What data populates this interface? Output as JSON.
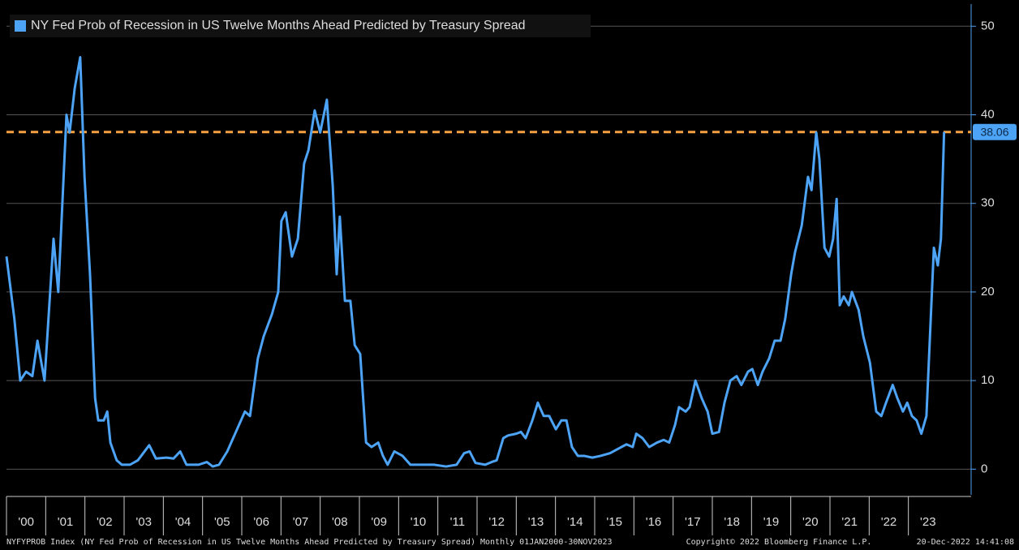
{
  "chart_data": {
    "type": "line",
    "series": [
      {
        "name": "NY Fed Prob of Recession in US Twelve Months Ahead Predicted by Treasury Spread",
        "color": "#4da3f5",
        "values": [
          24,
          17,
          10,
          11,
          10.5,
          14.5,
          10,
          26,
          20,
          40,
          38,
          43,
          46.5,
          33,
          22,
          8,
          5.5,
          5.5,
          6.5,
          3,
          1,
          0.5,
          0.5,
          1,
          2.7,
          1.2,
          1.3,
          1.2,
          2,
          0.5,
          0.5,
          0.8,
          0.3,
          0.5,
          2,
          4.5,
          6.5,
          6,
          12.5,
          15,
          17.5,
          20,
          28,
          29,
          24,
          26,
          34.5,
          36,
          40.5,
          38,
          41.7,
          32,
          22,
          28.5,
          19,
          19,
          14,
          13,
          3,
          2.5,
          3,
          1.5,
          0.5,
          2,
          1.5,
          0.5,
          0.5,
          0.5,
          0.3,
          0.5,
          1.8,
          2,
          0.7,
          0.5,
          0.8,
          1,
          3.5,
          3.8,
          4,
          4.2,
          3.5,
          5.5,
          7.5,
          6,
          6,
          4.5,
          5.5,
          5.5,
          2.5,
          1.5,
          1.5,
          1.3,
          1.5,
          1.8,
          2.3,
          2.8,
          2.5,
          4,
          3.5,
          2.5,
          3,
          3.3,
          3,
          5,
          7,
          6.5,
          7,
          10,
          8,
          6.5,
          4,
          4.2,
          7.5,
          10,
          10.5,
          9.5,
          11,
          11.3,
          9.5,
          11,
          12.5,
          14.5,
          14.5,
          17,
          22,
          24.5,
          27.5,
          33,
          31.5,
          38,
          35,
          25,
          24,
          26,
          30.5,
          18.5,
          19.5,
          18.5,
          20,
          18,
          15,
          12,
          6.5,
          6,
          7.5,
          9.5,
          8,
          6.5,
          7.5,
          6,
          5.5,
          4,
          6,
          14,
          25,
          23,
          26,
          38.06
        ]
      }
    ],
    "x": [
      2000.0,
      2000.2,
      2000.35,
      2000.5,
      2000.66,
      2000.79,
      2000.97,
      2001.2,
      2001.32,
      2001.53,
      2001.61,
      2001.74,
      2001.88,
      2001.99,
      2002.13,
      2002.26,
      2002.34,
      2002.48,
      2002.57,
      2002.65,
      2002.81,
      2002.94,
      2003.15,
      2003.35,
      2003.64,
      2003.81,
      2004.08,
      2004.26,
      2004.43,
      2004.59,
      2004.9,
      2005.11,
      2005.26,
      2005.42,
      2005.63,
      2005.88,
      2006.08,
      2006.21,
      2006.41,
      2006.56,
      2006.77,
      2006.93,
      2007.01,
      2007.12,
      2007.28,
      2007.43,
      2007.59,
      2007.7,
      2007.86,
      2008.0,
      2008.17,
      2008.32,
      2008.42,
      2008.5,
      2008.63,
      2008.77,
      2008.88,
      2009.02,
      2009.17,
      2009.31,
      2009.48,
      2009.6,
      2009.72,
      2009.89,
      2010.1,
      2010.3,
      2010.59,
      2010.9,
      2011.21,
      2011.48,
      2011.67,
      2011.81,
      2011.96,
      2012.21,
      2012.37,
      2012.5,
      2012.67,
      2012.79,
      2013.0,
      2013.12,
      2013.24,
      2013.41,
      2013.55,
      2013.7,
      2013.84,
      2014.01,
      2014.15,
      2014.28,
      2014.42,
      2014.57,
      2014.73,
      2014.94,
      2015.15,
      2015.39,
      2015.6,
      2015.81,
      2015.97,
      2016.06,
      2016.22,
      2016.39,
      2016.59,
      2016.76,
      2016.9,
      2017.05,
      2017.15,
      2017.32,
      2017.42,
      2017.57,
      2017.73,
      2017.88,
      2018.0,
      2018.17,
      2018.31,
      2018.46,
      2018.62,
      2018.74,
      2018.91,
      2019.02,
      2019.16,
      2019.28,
      2019.45,
      2019.59,
      2019.74,
      2019.86,
      2020.01,
      2020.11,
      2020.28,
      2020.44,
      2020.53,
      2020.65,
      2020.73,
      2020.86,
      2020.98,
      2021.08,
      2021.17,
      2021.25,
      2021.35,
      2021.48,
      2021.56,
      2021.73,
      2021.85,
      2022.02,
      2022.18,
      2022.31,
      2022.43,
      2022.6,
      2022.72,
      2022.86,
      2022.97,
      2023.09,
      2023.21,
      2023.33,
      2023.46,
      2023.54,
      2023.65,
      2023.75,
      2023.83,
      2023.91
    ],
    "xlim": [
      2000,
      2024.6
    ],
    "xticks": [
      {
        "value": 2000,
        "label": "'00"
      },
      {
        "value": 2001,
        "label": "'01"
      },
      {
        "value": 2002,
        "label": "'02"
      },
      {
        "value": 2003,
        "label": "'03"
      },
      {
        "value": 2004,
        "label": "'04"
      },
      {
        "value": 2005,
        "label": "'05"
      },
      {
        "value": 2006,
        "label": "'06"
      },
      {
        "value": 2007,
        "label": "'07"
      },
      {
        "value": 2008,
        "label": "'08"
      },
      {
        "value": 2009,
        "label": "'09"
      },
      {
        "value": 2010,
        "label": "'10"
      },
      {
        "value": 2011,
        "label": "'11"
      },
      {
        "value": 2012,
        "label": "'12"
      },
      {
        "value": 2013,
        "label": "'13"
      },
      {
        "value": 2014,
        "label": "'14"
      },
      {
        "value": 2015,
        "label": "'15"
      },
      {
        "value": 2016,
        "label": "'16"
      },
      {
        "value": 2017,
        "label": "'17"
      },
      {
        "value": 2018,
        "label": "'18"
      },
      {
        "value": 2019,
        "label": "'19"
      },
      {
        "value": 2020,
        "label": "'20"
      },
      {
        "value": 2021,
        "label": "'21"
      },
      {
        "value": 2022,
        "label": "'22"
      },
      {
        "value": 2023,
        "label": "'23"
      }
    ],
    "ylim": [
      -2.9,
      52.5
    ],
    "yticks": [
      0,
      10,
      20,
      30,
      40,
      50
    ],
    "grid": true,
    "reference_line": {
      "value": 38.06,
      "color": "#f5a142"
    },
    "footer": {
      "left": "NYFYPROB Index (NY Fed Prob of Recession in US Twelve Months Ahead Predicted by Treasury Spread)  Monthly 01JAN2000-30NOV2023",
      "center": "Copyright© 2022 Bloomberg Finance L.P.",
      "right": "20-Dec-2022 14:41:08"
    }
  }
}
